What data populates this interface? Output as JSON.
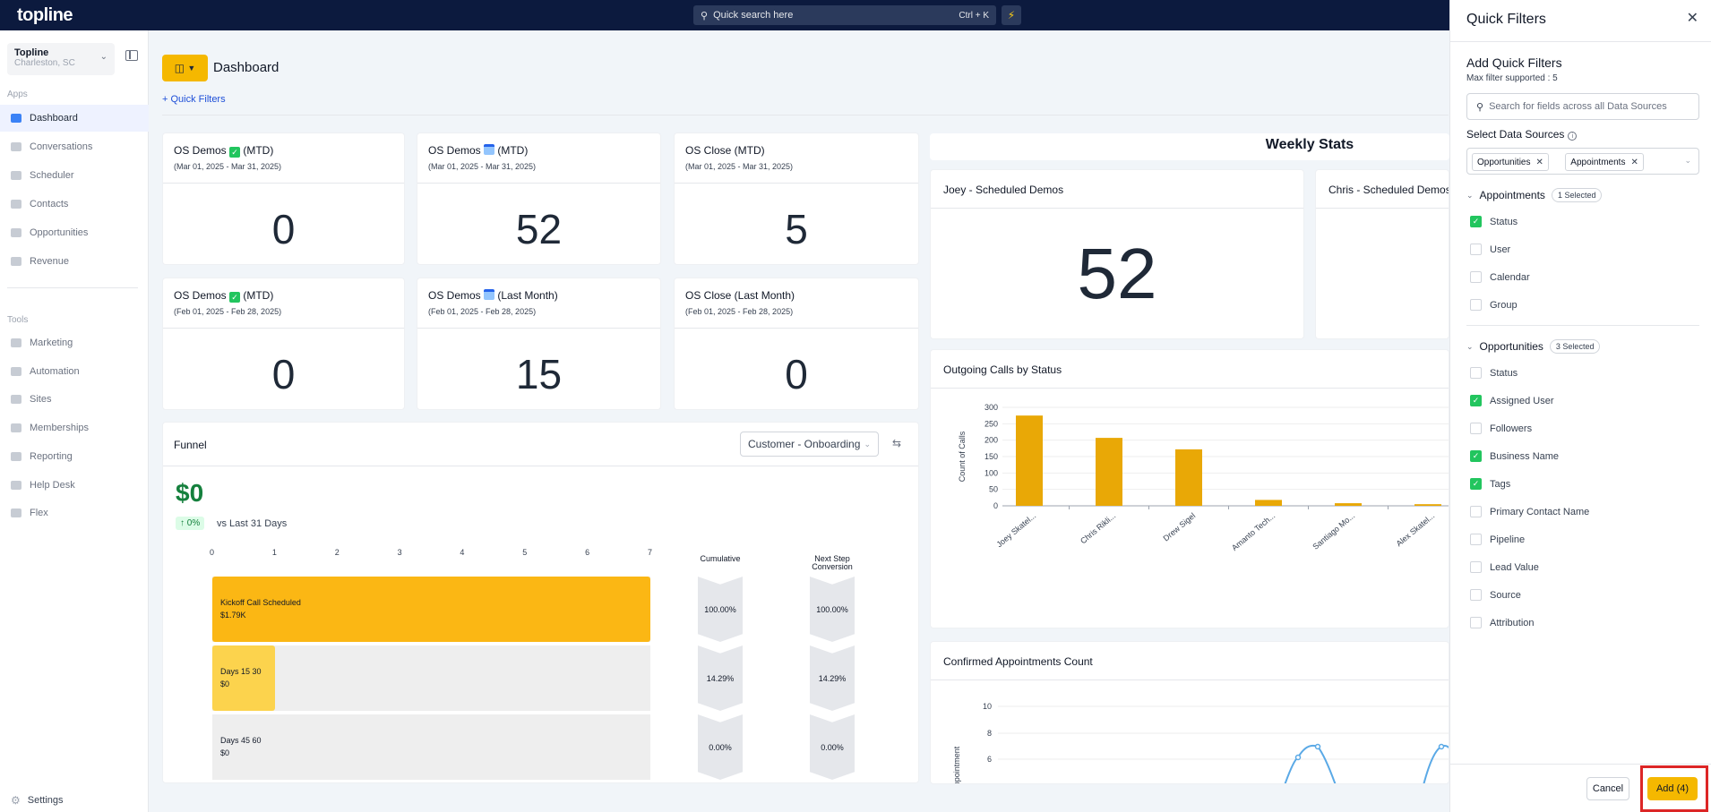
{
  "topbar": {
    "logo": "topline",
    "search_placeholder": "Quick search here",
    "search_shortcut": "Ctrl + K"
  },
  "sidebar": {
    "location_name": "Topline",
    "location_sub": "Charleston, SC",
    "apps_label": "Apps",
    "tools_label": "Tools",
    "apps": [
      "Dashboard",
      "Conversations",
      "Scheduler",
      "Contacts",
      "Opportunities",
      "Revenue"
    ],
    "tools": [
      "Marketing",
      "Automation",
      "Sites",
      "Memberships",
      "Reporting",
      "Help Desk",
      "Flex"
    ],
    "settings": "Settings"
  },
  "header": {
    "title": "Dashboard",
    "quick_filters_link": "+  Quick Filters"
  },
  "stat_cards": [
    {
      "title_a": "OS Demos ",
      "icon": "check",
      "title_b": " (MTD)",
      "range": "(Mar 01, 2025 - Mar 31, 2025)",
      "value": "0"
    },
    {
      "title_a": "OS Demos ",
      "icon": "calendar",
      "title_b": " (MTD)",
      "range": "(Mar 01, 2025 - Mar 31, 2025)",
      "value": "52"
    },
    {
      "title_a": "OS Close (MTD)",
      "icon": "",
      "title_b": "",
      "range": "(Mar 01, 2025 - Mar 31, 2025)",
      "value": "5"
    },
    {
      "title_a": "OS Demos ",
      "icon": "check",
      "title_b": " (MTD)",
      "range": "(Feb 01, 2025 - Feb 28, 2025)",
      "value": "0"
    },
    {
      "title_a": "OS Demos ",
      "icon": "calendar",
      "title_b": " (Last Month)",
      "range": "(Feb 01, 2025 - Feb 28, 2025)",
      "value": "15"
    },
    {
      "title_a": "OS Close (Last Month)",
      "icon": "",
      "title_b": "",
      "range": "(Feb 01, 2025 - Feb 28, 2025)",
      "value": "0"
    }
  ],
  "funnel": {
    "title": "Funnel",
    "pipeline": "Customer - Onboarding",
    "amount": "$0",
    "change": "↑ 0%",
    "vs_text": "vs Last 31 Days",
    "axis_ticks": [
      "0",
      "1",
      "2",
      "3",
      "4",
      "5",
      "6",
      "7"
    ],
    "col_cumulative": "Cumulative",
    "col_next_a": "Next Step",
    "col_next_b": "Conversion",
    "stages": [
      {
        "name": "Kickoff Call Scheduled",
        "amount": "$1.79K",
        "fill": 1.0,
        "color": "#fbb714",
        "cumulative": "100.00%",
        "next": "100.00%"
      },
      {
        "name": "Days 15 30",
        "amount": "$0",
        "fill": 0.1429,
        "color": "#fcd34d",
        "cumulative": "14.29%",
        "next": "14.29%"
      },
      {
        "name": "Days 45 60",
        "amount": "$0",
        "fill": 0,
        "color": "#eeeeee",
        "cumulative": "0.00%",
        "next": "0.00%"
      }
    ]
  },
  "weekly": {
    "title": "Weekly Stats",
    "joey_title": "Joey - Scheduled Demos",
    "joey_value": "52",
    "chris_title": "Chris - Scheduled Demos"
  },
  "calls_chart": {
    "title": "Outgoing Calls by Status",
    "chart_data": {
      "type": "bar",
      "ylabel": "Count of Calls",
      "ylim": [
        0,
        300
      ],
      "yticks": [
        "0",
        "50",
        "100",
        "150",
        "200",
        "250",
        "300"
      ],
      "categories": [
        "Joey Skatel...",
        "Chris Rikli...",
        "Drew Sigel",
        "Amanto Tech...",
        "Santiago Mo...",
        "Alex Skatel..."
      ],
      "values": [
        275,
        207,
        172,
        18,
        8,
        5
      ],
      "bar_color": "#e9a806"
    }
  },
  "appts_chart": {
    "title": "Confirmed Appointments Count",
    "chart_data": {
      "type": "line",
      "ylabel": "Appointment",
      "yticks": [
        "10",
        "8",
        "6"
      ],
      "line_color": "#5aa9e6"
    }
  },
  "drawer": {
    "title": "Quick Filters",
    "subtitle": "Add Quick Filters",
    "max_note": "Max filter supported : 5",
    "field_search_placeholder": "Search for fields across all Data Sources",
    "sources_label": "Select Data Sources",
    "chips": [
      "Opportunities",
      "Appointments"
    ],
    "groups": [
      {
        "name": "Appointments",
        "badge": "1 Selected",
        "fields": [
          {
            "label": "Status",
            "checked": true
          },
          {
            "label": "User",
            "checked": false
          },
          {
            "label": "Calendar",
            "checked": false
          },
          {
            "label": "Group",
            "checked": false
          }
        ]
      },
      {
        "name": "Opportunities",
        "badge": "3 Selected",
        "fields": [
          {
            "label": "Status",
            "checked": false
          },
          {
            "label": "Assigned User",
            "checked": true
          },
          {
            "label": "Followers",
            "checked": false
          },
          {
            "label": "Business Name",
            "checked": true
          },
          {
            "label": "Tags",
            "checked": true
          },
          {
            "label": "Primary Contact Name",
            "checked": false
          },
          {
            "label": "Pipeline",
            "checked": false
          },
          {
            "label": "Lead Value",
            "checked": false
          },
          {
            "label": "Source",
            "checked": false
          },
          {
            "label": "Attribution",
            "checked": false
          }
        ]
      }
    ],
    "cancel": "Cancel",
    "add": "Add (4)"
  }
}
